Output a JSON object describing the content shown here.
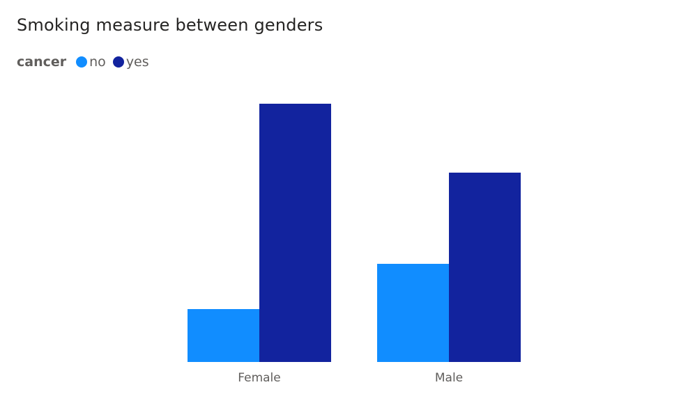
{
  "chart_data": {
    "type": "bar",
    "title": "Smoking measure between genders",
    "legend": {
      "title": "cancer",
      "position": "top-left",
      "entries": [
        {
          "name": "no",
          "color": "#118DFF"
        },
        {
          "name": "yes",
          "color": "#12239E"
        }
      ]
    },
    "categories": [
      "Female",
      "Male"
    ],
    "series": [
      {
        "name": "no",
        "color": "#118DFF",
        "values": [
          76,
          141
        ]
      },
      {
        "name": "yes",
        "color": "#12239E",
        "values": [
          371,
          272
        ]
      }
    ],
    "ylim": [
      0,
      371
    ],
    "grid": false,
    "xlabel": "",
    "ylabel": ""
  }
}
